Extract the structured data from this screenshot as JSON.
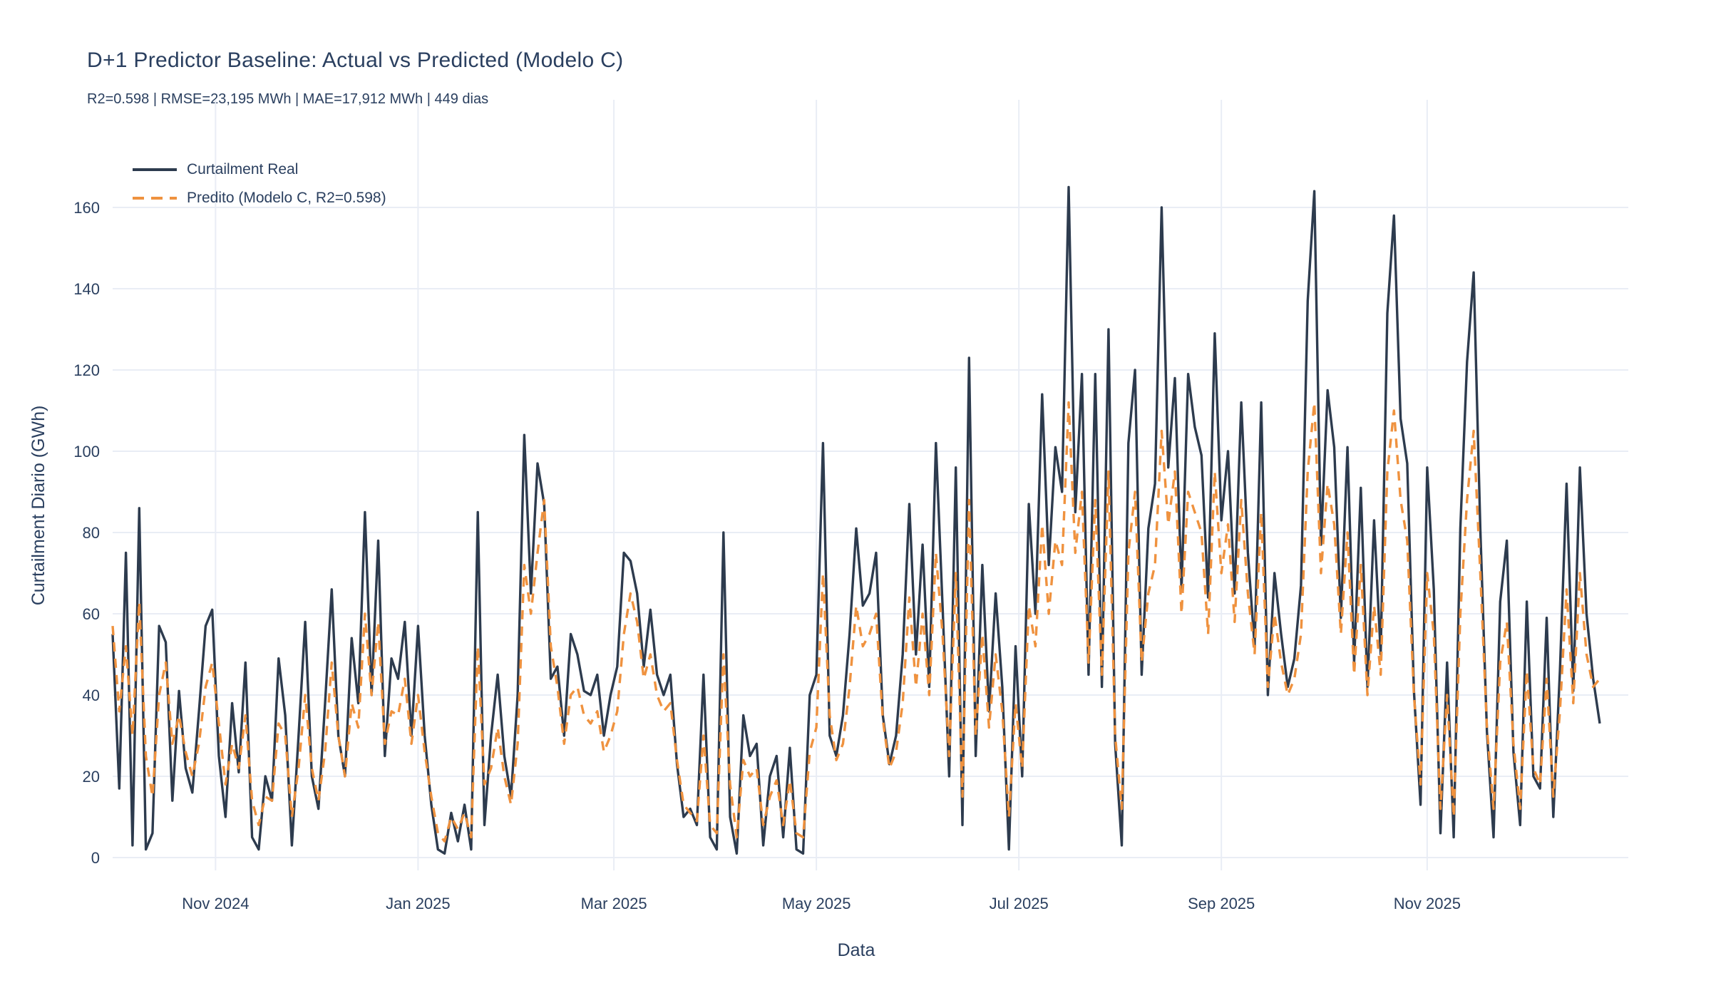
{
  "header": {
    "title": "D+1 Predictor Baseline: Actual vs Predicted (Modelo C)",
    "subtitle": "R2=0.598 | RMSE=23,195 MWh | MAE=17,912 MWh | 449 dias"
  },
  "legend": {
    "items": [
      {
        "label": "Curtailment Real",
        "color": "#2d3b4e",
        "dash": "solid"
      },
      {
        "label": "Predito (Modelo C, R2=0.598)",
        "color": "#ef923f",
        "dash": "dash"
      }
    ]
  },
  "colors": {
    "text": "#2a3f5f",
    "grid": "#e9edf5",
    "background": "#ffffff",
    "actual_line": "#2d3b4e",
    "predicted_line": "#ef923f"
  },
  "chart_data": {
    "type": "line",
    "title": "D+1 Predictor Baseline: Actual vs Predicted (Modelo C)",
    "subtitle": "R2=0.598 | RMSE=23,195 MWh | MAE=17,912 MWh | 449 dias",
    "xlabel": "Data",
    "ylabel": "Curtailment Diario (GWh)",
    "x_start_date": "2024-10-01",
    "x_step_days": 2,
    "n_days": 449,
    "ylim": [
      0,
      170
    ],
    "grid": true,
    "legend_position": "top-left",
    "yticks": [
      0,
      20,
      40,
      60,
      80,
      100,
      120,
      140,
      160
    ],
    "xticks": [
      {
        "day": 31,
        "label": "Nov 2024"
      },
      {
        "day": 92,
        "label": "Jan 2025"
      },
      {
        "day": 151,
        "label": "Mar 2025"
      },
      {
        "day": 212,
        "label": "May 2025"
      },
      {
        "day": 273,
        "label": "Jul 2025"
      },
      {
        "day": 334,
        "label": "Sep 2025"
      },
      {
        "day": 396,
        "label": "Nov 2025"
      }
    ],
    "series": [
      {
        "name": "Curtailment Real",
        "color": "#2d3b4e",
        "dash": "solid",
        "values": [
          55,
          17,
          75,
          3,
          86,
          2,
          6,
          57,
          53,
          14,
          41,
          22,
          16,
          36,
          57,
          61,
          25,
          10,
          38,
          21,
          48,
          5,
          2,
          20,
          14,
          49,
          35,
          3,
          30,
          58,
          20,
          12,
          38,
          66,
          30,
          20,
          54,
          38,
          85,
          40,
          78,
          25,
          49,
          44,
          58,
          30,
          57,
          30,
          13,
          2,
          1,
          11,
          4,
          13,
          2,
          85,
          8,
          30,
          45,
          25,
          15,
          40,
          104,
          65,
          97,
          87,
          44,
          47,
          30,
          55,
          50,
          41,
          40,
          45,
          30,
          40,
          47,
          75,
          73,
          65,
          47,
          61,
          45,
          40,
          45,
          23,
          10,
          12,
          8,
          45,
          5,
          2,
          80,
          10,
          1,
          35,
          25,
          28,
          3,
          20,
          25,
          5,
          27,
          2,
          1,
          40,
          45,
          102,
          30,
          25,
          35,
          55,
          81,
          62,
          65,
          75,
          35,
          23,
          30,
          50,
          87,
          50,
          77,
          42,
          102,
          62,
          20,
          96,
          8,
          123,
          25,
          72,
          36,
          65,
          42,
          2,
          52,
          20,
          87,
          60,
          114,
          72,
          101,
          90,
          165,
          85,
          119,
          45,
          119,
          42,
          130,
          28,
          3,
          102,
          120,
          45,
          81,
          92,
          160,
          96,
          118,
          66,
          119,
          106,
          99,
          64,
          129,
          83,
          100,
          65,
          112,
          75,
          52,
          112,
          40,
          70,
          55,
          42,
          49,
          67,
          137,
          164,
          77,
          115,
          101,
          59,
          101,
          48,
          91,
          42,
          83,
          50,
          134,
          158,
          108,
          97,
          41,
          13,
          96,
          66,
          6,
          48,
          5,
          81,
          122,
          144,
          81,
          31,
          5,
          63,
          78,
          26,
          8,
          63,
          20,
          17,
          59,
          10,
          46,
          92,
          41,
          96,
          60,
          44,
          33
        ]
      },
      {
        "name": "Predito (Modelo C, R2=0.598)",
        "color": "#ef923f",
        "dash": "8 7",
        "values": [
          57,
          36,
          52,
          30,
          63,
          25,
          15,
          40,
          48,
          28,
          35,
          26,
          20,
          28,
          42,
          48,
          33,
          18,
          28,
          22,
          35,
          14,
          8,
          15,
          14,
          33,
          30,
          10,
          22,
          40,
          22,
          14,
          26,
          48,
          30,
          20,
          38,
          32,
          60,
          40,
          58,
          28,
          36,
          35,
          44,
          28,
          40,
          26,
          15,
          6,
          4,
          10,
          7,
          11,
          5,
          52,
          18,
          22,
          32,
          20,
          13,
          28,
          72,
          60,
          75,
          88,
          52,
          42,
          28,
          40,
          42,
          35,
          33,
          36,
          26,
          30,
          36,
          55,
          65,
          58,
          44,
          50,
          40,
          36,
          38,
          24,
          13,
          11,
          9,
          30,
          8,
          6,
          50,
          18,
          5,
          24,
          20,
          22,
          8,
          15,
          19,
          8,
          19,
          6,
          5,
          26,
          32,
          70,
          35,
          24,
          28,
          42,
          62,
          52,
          55,
          60,
          34,
          22,
          26,
          38,
          64,
          42,
          60,
          40,
          75,
          55,
          25,
          70,
          15,
          88,
          30,
          55,
          32,
          50,
          36,
          10,
          38,
          22,
          62,
          52,
          82,
          60,
          78,
          72,
          112,
          75,
          90,
          48,
          88,
          45,
          95,
          30,
          12,
          75,
          90,
          48,
          65,
          72,
          105,
          82,
          95,
          60,
          90,
          85,
          80,
          55,
          95,
          70,
          82,
          58,
          88,
          65,
          50,
          85,
          42,
          60,
          48,
          40,
          44,
          55,
          95,
          112,
          70,
          92,
          82,
          55,
          80,
          45,
          72,
          40,
          62,
          45,
          95,
          110,
          88,
          78,
          40,
          18,
          70,
          55,
          12,
          40,
          10,
          60,
          88,
          105,
          70,
          32,
          12,
          48,
          58,
          28,
          12,
          46,
          22,
          18,
          44,
          15,
          36,
          66,
          38,
          70,
          50,
          42,
          44
        ]
      }
    ]
  }
}
